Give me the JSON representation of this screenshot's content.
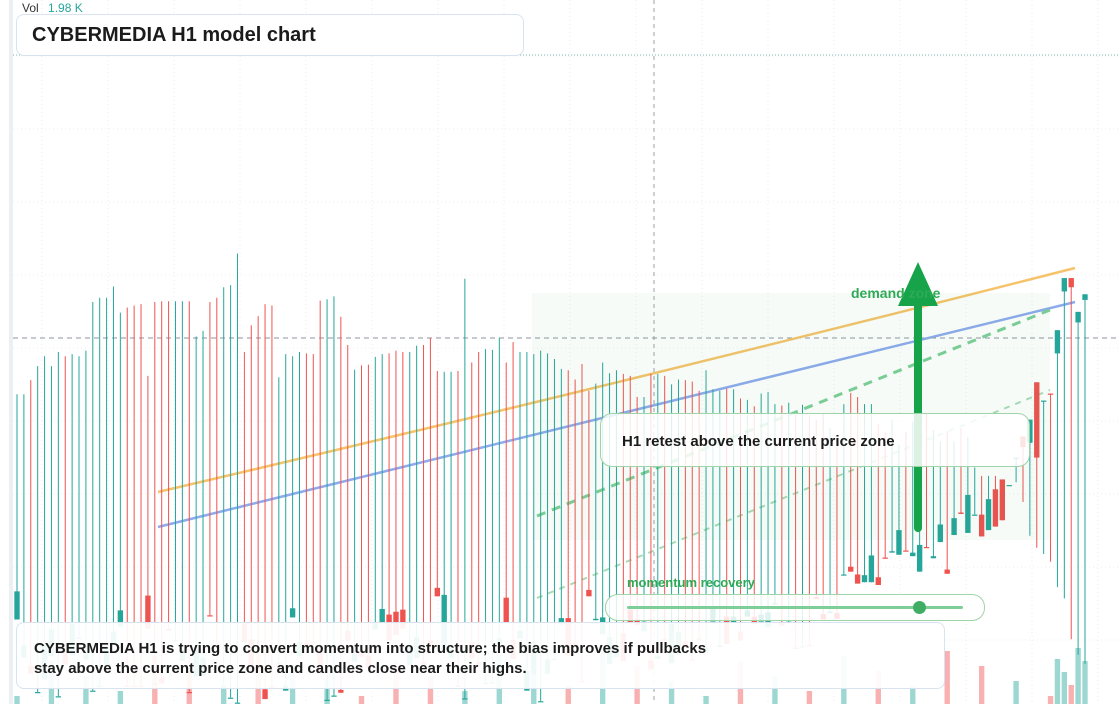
{
  "volume": {
    "label": "Vol",
    "value": "1.98 K"
  },
  "chart_title": "CYBERMEDIA H1 model chart",
  "note": "CYBERMEDIA H1 is trying to convert momentum into structure; the bias improves if pullbacks stay above the current price zone and candles close near their highs.",
  "callout": "H1 retest above the current price zone",
  "zone_label": "demand zone",
  "momentum": {
    "label": "momentum recovery",
    "level": 0.87
  },
  "colors": {
    "up": "#26a69a",
    "down": "#ef5350",
    "orange_line": "#f6c36a",
    "blue_line": "#8eaaee",
    "zone": "#2eaa55",
    "arrow": "#16a34a"
  },
  "chart_data": {
    "type": "candlestick",
    "symbol": "CYBERMEDIA",
    "timeframe": "H1",
    "candles": [
      [
        0.12,
        0.16,
        0.44,
        0.55,
        "u"
      ],
      [
        0.083,
        0.066,
        0.44,
        0.55,
        "u"
      ],
      [
        0.043,
        0.054,
        0.46,
        0.465,
        "d"
      ],
      [
        0.017,
        0.017,
        0.48,
        0.48,
        "u"
      ],
      [
        0.035,
        0.083,
        0.494,
        0.55,
        "u"
      ],
      [
        0.106,
        0.068,
        0.48,
        0.54,
        "u"
      ],
      [
        0.011,
        0.011,
        0.5,
        0.5,
        "u"
      ],
      [
        0.072,
        0.056,
        0.494,
        0.569,
        "d"
      ],
      [
        0.114,
        0.069,
        0.497,
        0.569,
        "u"
      ],
      [
        0.093,
        0.094,
        0.494,
        0.567,
        "u"
      ],
      [
        0.072,
        0.063,
        0.502,
        0.508,
        "u"
      ],
      [
        0.019,
        0.019,
        0.571,
        0.571,
        "u"
      ],
      [
        0.026,
        0.026,
        0.577,
        0.577,
        "u"
      ],
      [
        0.084,
        0.053,
        0.577,
        0.64,
        "u"
      ],
      [
        0.103,
        0.084,
        0.593,
        0.64,
        "u"
      ],
      [
        0.133,
        0.11,
        0.556,
        0.64,
        "u"
      ],
      [
        0.026,
        0.026,
        0.563,
        0.563,
        "d"
      ],
      [
        0.026,
        0.026,
        0.566,
        0.566,
        "d"
      ],
      [
        0.026,
        0.026,
        0.568,
        0.568,
        "d"
      ],
      [
        0.107,
        0.154,
        0.466,
        0.64,
        "d"
      ],
      [
        0.029,
        0.029,
        0.571,
        0.571,
        "d"
      ],
      [
        0.029,
        0.037,
        0.572,
        0.572,
        "d"
      ],
      [
        0.107,
        0.104,
        0.572,
        0.64,
        "d"
      ],
      [
        0.091,
        0.089,
        0.572,
        0.64,
        "u"
      ],
      [
        0.078,
        0.061,
        0.572,
        0.64,
        "u"
      ],
      [
        0.017,
        0.017,
        0.572,
        0.572,
        "d"
      ],
      [
        0.078,
        0.039,
        0.522,
        0.64,
        "u"
      ],
      [
        0.066,
        0.04,
        0.53,
        0.64,
        "u"
      ],
      [
        0.126,
        0.126,
        0.571,
        0.64,
        "d"
      ],
      [
        0.08,
        0.08,
        0.577,
        0.577,
        "d"
      ],
      [
        0.025,
        0.025,
        0.592,
        0.592,
        "u"
      ],
      [
        0.009,
        0.009,
        0.595,
        0.595,
        "u"
      ],
      [
        0.002,
        0.002,
        0.64,
        0.64,
        "u"
      ],
      [
        0.115,
        0.088,
        0.5,
        0.64,
        "d"
      ],
      [
        0.092,
        0.05,
        0.538,
        0.55,
        "d"
      ],
      [
        0.053,
        0.048,
        0.551,
        0.557,
        "d"
      ],
      [
        0.021,
        0.007,
        0.568,
        0.568,
        "d"
      ],
      [
        0.025,
        0.025,
        0.566,
        0.566,
        "d"
      ],
      [
        0.058,
        0.058,
        0.464,
        0.64,
        "u"
      ],
      [
        0.026,
        0.019,
        0.497,
        0.506,
        "u"
      ],
      [
        0.123,
        0.136,
        0.494,
        0.612,
        "u"
      ],
      [
        0.068,
        0.088,
        0.5,
        0.536,
        "u"
      ],
      [
        0.083,
        0.087,
        0.498,
        0.506,
        "d"
      ],
      [
        0.088,
        0.088,
        0.497,
        0.6,
        "d"
      ],
      [
        0.043,
        0.076,
        0.573,
        0.575,
        "d"
      ],
      [
        0.006,
        0.006,
        0.575,
        0.575,
        "u"
      ],
      [
        0.012,
        0.012,
        0.579,
        0.58,
        "u"
      ],
      [
        0.016,
        0.02,
        0.55,
        0.58,
        "d"
      ],
      [
        0.09,
        0.104,
        0.51,
        0.58,
        "d"
      ],
      [
        0.06,
        0.071,
        0.475,
        0.58,
        "u"
      ],
      [
        0.074,
        0.067,
        0.481,
        0.513,
        "d"
      ],
      [
        0.051,
        0.069,
        0.482,
        0.514,
        "d"
      ],
      [
        0.106,
        0.115,
        0.493,
        0.513,
        "u"
      ],
      [
        0.135,
        0.116,
        0.497,
        0.559,
        "u"
      ],
      [
        0.09,
        0.127,
        0.498,
        0.52,
        "d"
      ],
      [
        0.098,
        0.131,
        0.502,
        0.513,
        "d"
      ],
      [
        0.107,
        0.134,
        0.5,
        0.504,
        "d"
      ],
      [
        0.081,
        0.055,
        0.5,
        0.513,
        "u"
      ],
      [
        0.095,
        0.065,
        0.509,
        0.528,
        "u"
      ],
      [
        0.056,
        0.06,
        0.51,
        0.52,
        "d"
      ],
      [
        0.09,
        0.081,
        0.52,
        0.52,
        "d"
      ],
      [
        0.165,
        0.153,
        0.473,
        0.478,
        "d"
      ],
      [
        0.155,
        0.075,
        0.472,
        0.604,
        "u"
      ],
      [
        0.083,
        0.066,
        0.472,
        0.604,
        "u"
      ],
      [
        0.026,
        0.026,
        0.473,
        0.473,
        "d"
      ],
      [
        0.008,
        0.008,
        0.604,
        0.604,
        "u"
      ],
      [
        0.088,
        0.065,
        0.485,
        0.602,
        "d"
      ],
      [
        0.056,
        0.059,
        0.5,
        0.533,
        "d"
      ],
      [
        0.03,
        0.03,
        0.504,
        0.504,
        "u"
      ],
      [
        0.031,
        0.031,
        0.503,
        0.503,
        "u"
      ],
      [
        0.085,
        0.093,
        0.52,
        0.568,
        "u"
      ],
      [
        0.116,
        0.151,
        0.485,
        0.507,
        "d"
      ],
      [
        0.064,
        0.091,
        0.514,
        0.52,
        "d"
      ],
      [
        0.104,
        0.093,
        0.5,
        0.52,
        "u"
      ],
      [
        0.019,
        0.047,
        0.5,
        0.517,
        "u"
      ],
      [
        0.088,
        0.042,
        0.497,
        0.518,
        "u"
      ],
      [
        0.004,
        0.004,
        0.502,
        0.502,
        "u"
      ],
      [
        0.043,
        0.063,
        0.498,
        0.498,
        "u"
      ],
      [
        0.064,
        0.064,
        0.49,
        0.498,
        "u"
      ],
      [
        0.113,
        0.122,
        0.476,
        0.49,
        "u"
      ],
      [
        0.069,
        0.122,
        0.474,
        0.488,
        "d"
      ],
      [
        0.087,
        0.084,
        0.461,
        0.473,
        "d"
      ],
      [
        0.033,
        0.033,
        0.483,
        0.483,
        "d"
      ],
      [
        0.153,
        0.162,
        0.445,
        0.468,
        "d"
      ],
      [
        0.119,
        0.121,
        0.455,
        0.464,
        "u"
      ],
      [
        0.123,
        0.099,
        0.485,
        0.503,
        "u"
      ],
      [
        0.095,
        0.057,
        0.47,
        0.486,
        "u"
      ],
      [
        0.067,
        0.082,
        0.474,
        0.474,
        "u"
      ],
      [
        0.061,
        0.101,
        0.469,
        0.495,
        "d"
      ],
      [
        0.134,
        0.116,
        0.466,
        0.47,
        "d"
      ],
      [
        0.12,
        0.112,
        0.436,
        0.5,
        "d"
      ],
      [
        0.103,
        0.117,
        0.436,
        0.48,
        "u"
      ],
      [
        0.062,
        0.049,
        0.469,
        0.481,
        "d"
      ],
      [
        0.064,
        0.068,
        0.469,
        0.473,
        "u"
      ],
      [
        0.09,
        0.092,
        0.466,
        0.489,
        "d"
      ],
      [
        0.114,
        0.058,
        0.454,
        0.516,
        "u"
      ],
      [
        0.07,
        0.102,
        0.461,
        0.496,
        "u"
      ],
      [
        0.089,
        0.08,
        0.46,
        0.482,
        "d"
      ],
      [
        0.063,
        0.063,
        0.458,
        0.486,
        "d"
      ],
      [
        0.093,
        0.092,
        0.445,
        0.471,
        "d"
      ],
      [
        0.073,
        0.08,
        0.474,
        0.496,
        "u"
      ],
      [
        0.117,
        0.135,
        0.447,
        0.486,
        "u"
      ],
      [
        0.081,
        0.083,
        0.445,
        0.454,
        "u"
      ],
      [
        0.124,
        0.085,
        0.448,
        0.474,
        "d"
      ],
      [
        0.116,
        0.124,
        0.447,
        0.467,
        "u"
      ],
      [
        0.103,
        0.09,
        0.434,
        0.483,
        "d"
      ],
      [
        0.124,
        0.133,
        0.432,
        0.464,
        "u"
      ],
      [
        0.124,
        0.114,
        0.423,
        0.453,
        "d"
      ],
      [
        0.117,
        0.127,
        0.441,
        0.457,
        "u"
      ],
      [
        0.13,
        0.109,
        0.443,
        0.466,
        "u"
      ],
      [
        0.143,
        0.143,
        0.426,
        0.44,
        "u"
      ],
      [
        0.115,
        0.111,
        0.424,
        0.464,
        "d"
      ],
      [
        0.115,
        0.117,
        0.428,
        0.463,
        "u"
      ],
      [
        0.08,
        0.08,
        0.41,
        0.433,
        "d"
      ],
      [
        0.082,
        0.082,
        0.425,
        0.439,
        "u"
      ],
      [
        0.084,
        0.083,
        0.41,
        0.436,
        "d"
      ],
      [
        0.152,
        0.149,
        0.404,
        0.422,
        "d"
      ],
      [
        0.128,
        0.12,
        0.413,
        0.437,
        "d"
      ],
      [
        0.131,
        0.131,
        0.392,
        0.421,
        "u"
      ],
      [
        0.129,
        0.121,
        0.367,
        0.424,
        "d"
      ],
      [
        0.184,
        0.183,
        0.426,
        0.453,
        "u"
      ],
      [
        0.195,
        0.188,
        0.442,
        0.442,
        "d"
      ],
      [
        0.171,
        0.184,
        0.436,
        0.436,
        "d"
      ],
      [
        0.173,
        0.183,
        0.426,
        0.442,
        "u"
      ],
      [
        0.173,
        0.211,
        0.426,
        0.439,
        "u"
      ],
      [
        0.18,
        0.169,
        0.397,
        0.428,
        "d"
      ],
      [
        0.208,
        0.208,
        0.386,
        0.42,
        "d"
      ],
      [
        0.215,
        0.217,
        0.404,
        0.423,
        "u"
      ],
      [
        0.247,
        0.212,
        0.368,
        0.389,
        "u"
      ],
      [
        0.218,
        0.218,
        0.387,
        0.387,
        "d"
      ],
      [
        0.21,
        0.215,
        0.401,
        0.412,
        "u"
      ],
      [
        0.188,
        0.226,
        0.384,
        0.427,
        "u"
      ],
      [
        0.223,
        0.223,
        0.412,
        0.412,
        "d"
      ],
      [
        0.207,
        0.21,
        0.389,
        0.389,
        "u"
      ],
      [
        0.255,
        0.23,
        0.373,
        0.373,
        "u"
      ],
      [
        0.185,
        0.191,
        0.387,
        0.387,
        "d"
      ],
      [
        0.264,
        0.24,
        0.373,
        0.373,
        "u"
      ],
      [
        0.27,
        0.272,
        0.392,
        0.392,
        "d"
      ],
      [
        0.297,
        0.243,
        0.379,
        0.379,
        "u"
      ],
      [
        0.269,
        0.269,
        0.336,
        0.371,
        "u"
      ],
      [
        0.269,
        0.238,
        0.324,
        0.35,
        "d"
      ],
      [
        0.247,
        0.291,
        0.324,
        0.34,
        "u"
      ],
      [
        0.305,
        0.252,
        0.324,
        0.324,
        "d"
      ],
      [
        0.319,
        0.261,
        0.316,
        0.338,
        "d"
      ],
      [
        0.311,
        0.311,
        0.304,
        0.349,
        "u"
      ],
      [
        0.35,
        0.35,
        0.289,
        0.315,
        "u"
      ],
      [
        0.38,
        0.365,
        0.239,
        0.287,
        "d"
      ],
      [
        0.404,
        0.371,
        0.233,
        0.239,
        "u"
      ],
      [
        0.457,
        0.35,
        0.184,
        0.222,
        "d"
      ],
      [
        0.431,
        0.431,
        0.172,
        0.213,
        "u"
      ],
      [
        0.441,
        0.441,
        0.167,
        0.202,
        "d"
      ],
      [
        0.531,
        0.498,
        0.152,
        0.166,
        "u"
      ],
      [
        0.605,
        0.586,
        0.13,
        0.15,
        "u"
      ],
      [
        0.592,
        0.605,
        0.051,
        0.092,
        "d"
      ],
      [
        0.557,
        0.542,
        0.05,
        0.07,
        "u"
      ],
      [
        0.574,
        0.582,
        0.008,
        0.057,
        "u"
      ]
    ]
  }
}
